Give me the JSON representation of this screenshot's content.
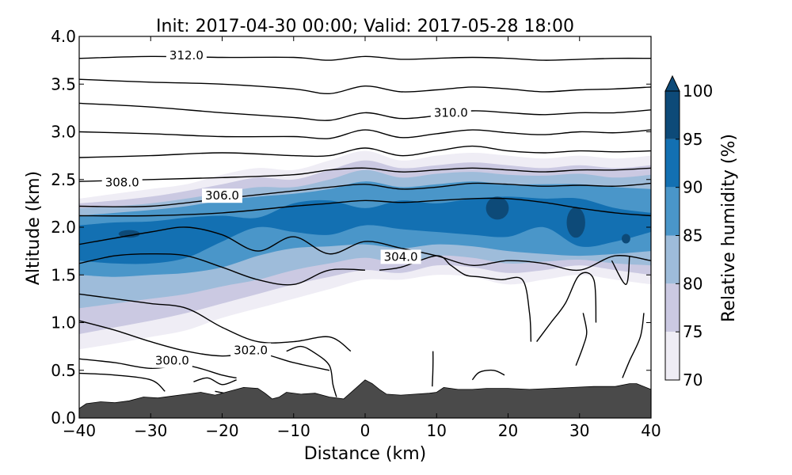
{
  "chart_data": {
    "type": "contour-cross-section",
    "title": "Init: 2017-04-30 00:00; Valid: 2017-05-28 18:00",
    "xlabel": "Distance (km)",
    "ylabel": "Altitude (km)",
    "xlim": [
      -40,
      40
    ],
    "ylim": [
      0.0,
      4.0
    ],
    "x_ticks": [
      -40,
      -30,
      -20,
      -10,
      0,
      10,
      20,
      30,
      40
    ],
    "x_tick_labels": [
      "−40",
      "−30",
      "−20",
      "−10",
      "0",
      "10",
      "20",
      "30",
      "40"
    ],
    "y_ticks": [
      0.0,
      0.5,
      1.0,
      1.5,
      2.0,
      2.5,
      3.0,
      3.5,
      4.0
    ],
    "y_tick_labels": [
      "0.0",
      "0.5",
      "1.0",
      "1.5",
      "2.0",
      "2.5",
      "3.0",
      "3.5",
      "4.0"
    ],
    "filled_contour": {
      "variable": "Relative humidity",
      "colorbar_label": "Relative humidity (%)",
      "levels": [
        70,
        75,
        80,
        85,
        90,
        95,
        100
      ],
      "level_labels": [
        "70",
        "75",
        "80",
        "85",
        "90",
        "95",
        "100"
      ],
      "colors": [
        "#efedf5",
        "#cbc9e2",
        "#9ebcda",
        "#4a96c9",
        "#1370b2",
        "#0d4a78"
      ],
      "extend": "max",
      "bands": [
        {
          "level": 70,
          "x": [
            -40,
            -35,
            -30,
            -25,
            -20,
            -15,
            -10,
            -5,
            0,
            5,
            10,
            15,
            20,
            25,
            30,
            35,
            40
          ],
          "bottom": [
            0.72,
            0.78,
            0.85,
            0.92,
            1.05,
            1.15,
            1.25,
            1.35,
            1.45,
            1.45,
            1.5,
            1.48,
            1.4,
            1.45,
            1.5,
            1.45,
            1.4
          ],
          "top": [
            2.3,
            2.35,
            2.4,
            2.45,
            2.55,
            2.62,
            2.6,
            2.7,
            2.8,
            2.7,
            2.75,
            2.78,
            2.75,
            2.72,
            2.75,
            2.72,
            2.75
          ]
        },
        {
          "level": 75,
          "x": [
            -40,
            -35,
            -30,
            -25,
            -20,
            -15,
            -10,
            -5,
            0,
            5,
            10,
            15,
            20,
            25,
            30,
            35,
            40
          ],
          "bottom": [
            0.88,
            0.95,
            1.02,
            1.1,
            1.2,
            1.3,
            1.4,
            1.48,
            1.55,
            1.52,
            1.6,
            1.58,
            1.52,
            1.55,
            1.6,
            1.55,
            1.5
          ],
          "top": [
            2.25,
            2.28,
            2.32,
            2.38,
            2.45,
            2.52,
            2.5,
            2.6,
            2.7,
            2.62,
            2.65,
            2.68,
            2.65,
            2.62,
            2.65,
            2.62,
            2.65
          ]
        },
        {
          "level": 80,
          "x": [
            -40,
            -35,
            -30,
            -25,
            -20,
            -15,
            -10,
            -5,
            0,
            5,
            10,
            15,
            20,
            25,
            30,
            35,
            40
          ],
          "bottom": [
            1.15,
            1.2,
            1.25,
            1.3,
            1.38,
            1.45,
            1.55,
            1.62,
            1.68,
            1.62,
            1.7,
            1.68,
            1.62,
            1.64,
            1.66,
            1.62,
            1.6
          ],
          "top": [
            2.2,
            2.22,
            2.25,
            2.3,
            2.36,
            2.42,
            2.42,
            2.5,
            2.6,
            2.52,
            2.56,
            2.58,
            2.55,
            2.54,
            2.56,
            2.52,
            2.55
          ]
        },
        {
          "level": 85,
          "x": [
            -40,
            -35,
            -30,
            -25,
            -20,
            -15,
            -10,
            -5,
            0,
            5,
            10,
            15,
            20,
            25,
            30,
            35,
            40
          ],
          "bottom": [
            1.5,
            1.48,
            1.5,
            1.52,
            1.58,
            1.7,
            1.78,
            1.8,
            1.82,
            1.78,
            1.82,
            1.8,
            1.75,
            1.72,
            1.7,
            1.72,
            1.75
          ],
          "top": [
            2.12,
            2.15,
            2.18,
            2.22,
            2.28,
            2.32,
            2.35,
            2.4,
            2.48,
            2.42,
            2.45,
            2.48,
            2.45,
            2.45,
            2.45,
            2.42,
            2.4
          ]
        },
        {
          "level": 90,
          "x": [
            -40,
            -35,
            -30,
            -25,
            -20,
            -15,
            -10,
            -5,
            0,
            5,
            10,
            15,
            20,
            25,
            30,
            35,
            40
          ],
          "bottom": [
            1.65,
            1.62,
            1.62,
            1.68,
            1.85,
            2.0,
            1.95,
            1.92,
            2.02,
            1.98,
            1.95,
            1.92,
            1.9,
            2.0,
            1.8,
            1.85,
            1.95
          ],
          "top": [
            2.02,
            2.05,
            2.06,
            2.1,
            2.12,
            2.1,
            2.25,
            2.28,
            2.2,
            2.28,
            2.25,
            2.3,
            2.32,
            2.3,
            2.3,
            2.2,
            2.15
          ]
        }
      ],
      "cores_95": [
        {
          "x": -33,
          "y": 1.93,
          "rx_km": 1.5,
          "ry_km": 0.04
        },
        {
          "x": 18.5,
          "y": 2.2,
          "rx_km": 1.6,
          "ry_km": 0.12
        },
        {
          "x": 29.5,
          "y": 2.05,
          "rx_km": 1.3,
          "ry_km": 0.16
        },
        {
          "x": 36.5,
          "y": 1.88,
          "rx_km": 0.6,
          "ry_km": 0.05
        }
      ]
    },
    "line_contours": {
      "variable": "Potential temperature (K)",
      "labels": [
        {
          "text": "312.0",
          "x": -25,
          "y": 3.8
        },
        {
          "text": "310.0",
          "x": 12,
          "y": 3.2
        },
        {
          "text": "308.0",
          "x": -34,
          "y": 2.47
        },
        {
          "text": "306.0",
          "x": -20,
          "y": 2.33
        },
        {
          "text": "304.0",
          "x": 5,
          "y": 1.69
        },
        {
          "text": "302.0",
          "x": -16,
          "y": 0.71
        },
        {
          "text": "300.0",
          "x": -27,
          "y": 0.6
        }
      ],
      "lines": [
        {
          "x": [
            -40,
            -30,
            -20,
            -10,
            -5,
            0,
            5,
            10,
            15,
            20,
            25,
            30,
            35,
            40
          ],
          "y": [
            3.77,
            3.79,
            3.78,
            3.78,
            3.75,
            3.79,
            3.76,
            3.77,
            3.78,
            3.77,
            3.75,
            3.76,
            3.77,
            3.77
          ]
        },
        {
          "x": [
            -40,
            -30,
            -20,
            -10,
            -5,
            0,
            5,
            10,
            15,
            20,
            25,
            30,
            35,
            40
          ],
          "y": [
            3.55,
            3.52,
            3.5,
            3.45,
            3.4,
            3.48,
            3.42,
            3.44,
            3.47,
            3.45,
            3.42,
            3.44,
            3.45,
            3.47
          ]
        },
        {
          "x": [
            -40,
            -30,
            -20,
            -10,
            -5,
            0,
            5,
            10,
            15,
            20,
            25,
            30,
            35,
            40
          ],
          "y": [
            3.3,
            3.26,
            3.2,
            3.15,
            3.12,
            3.2,
            3.14,
            3.17,
            3.22,
            3.2,
            3.18,
            3.2,
            3.2,
            3.23
          ]
        },
        {
          "x": [
            -40,
            -30,
            -20,
            -10,
            -5,
            0,
            5,
            10,
            15,
            20,
            25,
            30,
            35,
            40
          ],
          "y": [
            3.0,
            2.98,
            2.95,
            2.95,
            2.93,
            3.02,
            2.94,
            2.98,
            3.02,
            2.99,
            2.97,
            3.0,
            2.99,
            3.02
          ]
        },
        {
          "x": [
            -40,
            -30,
            -20,
            -10,
            -5,
            0,
            5,
            10,
            15,
            20,
            25,
            30,
            35,
            40
          ],
          "y": [
            2.73,
            2.75,
            2.78,
            2.75,
            2.75,
            2.83,
            2.75,
            2.8,
            2.85,
            2.8,
            2.78,
            2.8,
            2.79,
            2.8
          ]
        },
        {
          "x": [
            -40,
            -30,
            -20,
            -10,
            -5,
            0,
            5,
            10,
            15,
            20,
            25,
            30,
            35,
            40
          ],
          "y": [
            2.48,
            2.5,
            2.52,
            2.55,
            2.6,
            2.62,
            2.58,
            2.6,
            2.62,
            2.6,
            2.58,
            2.6,
            2.6,
            2.62
          ]
        },
        {
          "x": [
            -40,
            -30,
            -20,
            -10,
            -5,
            0,
            5,
            10,
            15,
            20,
            25,
            30,
            35,
            40
          ],
          "y": [
            2.22,
            2.22,
            2.3,
            2.38,
            2.42,
            2.45,
            2.4,
            2.42,
            2.46,
            2.45,
            2.43,
            2.44,
            2.43,
            2.46
          ]
        },
        {
          "x": [
            -40,
            -30,
            -20,
            -10,
            -5,
            0,
            5,
            10,
            15,
            20,
            25,
            30,
            35,
            40
          ],
          "y": [
            2.12,
            2.12,
            2.15,
            2.22,
            2.25,
            2.28,
            2.26,
            2.28,
            2.3,
            2.3,
            2.26,
            2.2,
            2.15,
            2.12
          ]
        },
        {
          "x": [
            -40,
            -30,
            -25,
            -20,
            -15,
            -10,
            -5,
            0,
            5,
            10,
            15,
            20,
            25,
            30,
            35,
            40
          ],
          "y": [
            1.82,
            1.95,
            2.0,
            1.92,
            1.75,
            1.9,
            1.72,
            1.85,
            1.78,
            1.7,
            1.6,
            1.65,
            1.62,
            1.55,
            1.7,
            1.65
          ]
        },
        {
          "x": [
            -40,
            -35,
            -30,
            -25,
            -20,
            -15,
            -10,
            -5,
            0
          ],
          "y": [
            1.62,
            1.7,
            1.72,
            1.7,
            1.58,
            1.45,
            1.4,
            1.55,
            1.55
          ]
        },
        {
          "x": [
            -40,
            -35,
            -30,
            -25,
            -20,
            -15,
            -10,
            -5,
            -2
          ],
          "y": [
            1.3,
            1.25,
            1.2,
            1.15,
            0.95,
            0.8,
            0.8,
            0.85,
            0.7
          ]
        },
        {
          "x": [
            -40,
            -35,
            -30,
            -25,
            -20,
            -15,
            -10,
            -5
          ],
          "y": [
            1.02,
            0.92,
            0.8,
            0.7,
            0.65,
            0.68,
            0.58,
            0.5
          ]
        },
        {
          "x": [
            -40,
            -35,
            -30,
            -25,
            -20,
            -18
          ],
          "y": [
            0.62,
            0.58,
            0.52,
            0.55,
            0.45,
            0.42
          ]
        },
        {
          "x": [
            -40,
            -35,
            -30,
            -28
          ],
          "y": [
            0.47,
            0.45,
            0.4,
            0.28
          ]
        },
        {
          "x": [
            2,
            5,
            10,
            12,
            14,
            16,
            19,
            22,
            23,
            23.2
          ],
          "y": [
            1.55,
            1.58,
            1.7,
            1.6,
            1.5,
            1.48,
            1.45,
            1.45,
            1.1,
            0.8
          ]
        },
        {
          "x": [
            24,
            26,
            28,
            30,
            32,
            32.3
          ],
          "y": [
            0.8,
            1.0,
            1.2,
            1.5,
            1.45,
            1.0
          ]
        },
        {
          "x": [
            29.5,
            30.5,
            31,
            30.5
          ],
          "y": [
            0.55,
            0.75,
            0.9,
            1.1
          ]
        },
        {
          "x": [
            34.5,
            36.5,
            37
          ],
          "y": [
            1.65,
            1.4,
            1.7
          ]
        },
        {
          "x": [
            36,
            37,
            38.5,
            39
          ],
          "y": [
            0.42,
            0.6,
            0.85,
            1.1
          ]
        },
        {
          "x": [
            15,
            16,
            18,
            19.5
          ],
          "y": [
            0.4,
            0.48,
            0.5,
            0.45
          ]
        },
        {
          "x": [
            9.5,
            9.5,
            9.4
          ],
          "y": [
            0.7,
            0.55,
            0.33
          ]
        },
        {
          "x": [
            -11,
            -9,
            -7,
            -5,
            -4.5,
            -4
          ],
          "y": [
            0.7,
            0.75,
            0.68,
            0.55,
            0.35,
            0.22
          ]
        },
        {
          "x": [
            -24,
            -22,
            -20,
            -18
          ],
          "y": [
            0.38,
            0.42,
            0.35,
            0.4
          ]
        },
        {
          "x": [
            -21,
            -19
          ],
          "y": [
            0.28,
            0.25
          ]
        }
      ]
    },
    "terrain": {
      "color": "#4a4a4a",
      "x": [
        -40,
        -39,
        -37,
        -35,
        -33,
        -31,
        -29,
        -27,
        -25,
        -23,
        -21,
        -19,
        -17,
        -15,
        -14,
        -13,
        -12,
        -11,
        -9,
        -7,
        -5,
        -3,
        -1.5,
        0,
        1,
        2,
        3,
        5,
        7,
        9,
        10,
        11,
        13,
        15,
        17,
        20,
        23,
        26,
        29,
        32,
        35,
        37,
        38,
        40
      ],
      "y": [
        0.1,
        0.15,
        0.17,
        0.16,
        0.18,
        0.22,
        0.21,
        0.23,
        0.25,
        0.27,
        0.24,
        0.28,
        0.32,
        0.31,
        0.26,
        0.2,
        0.22,
        0.27,
        0.25,
        0.26,
        0.22,
        0.2,
        0.3,
        0.4,
        0.36,
        0.3,
        0.25,
        0.24,
        0.25,
        0.26,
        0.27,
        0.32,
        0.3,
        0.3,
        0.31,
        0.31,
        0.3,
        0.31,
        0.32,
        0.33,
        0.33,
        0.36,
        0.36,
        0.3
      ]
    }
  }
}
